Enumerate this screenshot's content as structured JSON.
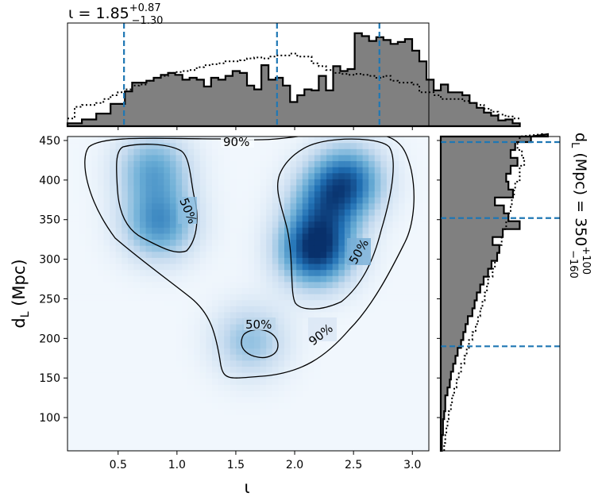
{
  "colors": {
    "hist_fill": "#808080",
    "quantile_line": "#1f77b4",
    "density_cmap": [
      "#f7fbff",
      "#c6dbef",
      "#6baed6",
      "#2171b5",
      "#08306b"
    ]
  },
  "chart_data": {
    "type": "corner_plot",
    "top_title": {
      "symbol": "ι",
      "median": "1.85",
      "upper": "+0.87",
      "lower": "−1.30"
    },
    "right_title": {
      "symbol": "d_L",
      "unit": "(Mpc)",
      "median": "350",
      "upper": "+100",
      "lower": "−160"
    },
    "joint": {
      "type": "heatmap_contour",
      "xlabel": "ι",
      "ylabel": "d_L (Mpc)",
      "xlim": [
        0.07,
        3.14
      ],
      "ylim": [
        58,
        455
      ],
      "xticks": [
        "0.5",
        "1.0",
        "1.5",
        "2.0",
        "2.5",
        "3.0"
      ],
      "yticks": [
        "100",
        "150",
        "200",
        "250",
        "300",
        "350",
        "400",
        "450"
      ],
      "contour_labels": [
        "90%",
        "50%",
        "50%",
        "50%",
        "90%"
      ],
      "density_peaks": [
        {
          "x": 2.18,
          "y": 312,
          "amplitude": 1.0
        },
        {
          "x": 2.45,
          "y": 400,
          "amplitude": 0.72
        },
        {
          "x": 2.25,
          "y": 370,
          "amplitude": 0.45
        },
        {
          "x": 0.85,
          "y": 345,
          "amplitude": 0.6
        },
        {
          "x": 0.8,
          "y": 415,
          "amplitude": 0.5
        },
        {
          "x": 1.62,
          "y": 197,
          "amplitude": 0.38
        }
      ]
    },
    "top_marginal": {
      "type": "histogram",
      "bin_start": 0.07,
      "bin_width": 0.061,
      "solid": [
        0.03,
        0.03,
        0.07,
        0.07,
        0.13,
        0.13,
        0.23,
        0.23,
        0.36,
        0.45,
        0.45,
        0.47,
        0.5,
        0.53,
        0.55,
        0.53,
        0.48,
        0.5,
        0.48,
        0.41,
        0.5,
        0.48,
        0.52,
        0.57,
        0.55,
        0.42,
        0.38,
        0.63,
        0.48,
        0.5,
        0.42,
        0.25,
        0.32,
        0.38,
        0.37,
        0.52,
        0.37,
        0.62,
        0.57,
        0.59,
        0.96,
        0.93,
        0.88,
        0.92,
        0.89,
        0.85,
        0.87,
        0.9,
        0.78,
        0.67,
        0.48,
        0.37,
        0.43,
        0.35,
        0.35,
        0.32,
        0.24,
        0.19,
        0.14,
        0.11,
        0.06,
        0.07,
        0.03
      ],
      "dotted": [
        0.08,
        0.2,
        0.22,
        0.22,
        0.24,
        0.28,
        0.32,
        0.35,
        0.38,
        0.42,
        0.43,
        0.47,
        0.5,
        0.52,
        0.55,
        0.56,
        0.57,
        0.58,
        0.61,
        0.63,
        0.64,
        0.65,
        0.67,
        0.67,
        0.68,
        0.7,
        0.71,
        0.7,
        0.72,
        0.73,
        0.73,
        0.75,
        0.72,
        0.72,
        0.65,
        0.62,
        0.58,
        0.55,
        0.54,
        0.53,
        0.54,
        0.53,
        0.52,
        0.5,
        0.52,
        0.47,
        0.45,
        0.45,
        0.43,
        0.35,
        0.35,
        0.32,
        0.28,
        0.28,
        0.28,
        0.26,
        0.24,
        0.22,
        0.18,
        0.15,
        0.12,
        0.1,
        0.08
      ],
      "quantiles": [
        0.55,
        1.85,
        2.72
      ]
    },
    "right_marginal": {
      "type": "histogram_horizontal",
      "bin_start": 58,
      "bin_width": 10,
      "solid": [
        0.01,
        0.01,
        0.02,
        0.02,
        0.03,
        0.04,
        0.04,
        0.06,
        0.08,
        0.09,
        0.11,
        0.13,
        0.15,
        0.18,
        0.2,
        0.22,
        0.24,
        0.28,
        0.3,
        0.32,
        0.35,
        0.38,
        0.42,
        0.45,
        0.5,
        0.52,
        0.46,
        0.55,
        0.7,
        0.6,
        0.56,
        0.48,
        0.64,
        0.6,
        0.58,
        0.62,
        0.68,
        0.62,
        0.66,
        0.8,
        0.95
      ],
      "dotted": [
        0.03,
        0.04,
        0.05,
        0.06,
        0.07,
        0.09,
        0.1,
        0.12,
        0.14,
        0.16,
        0.18,
        0.21,
        0.23,
        0.25,
        0.28,
        0.31,
        0.33,
        0.35,
        0.37,
        0.39,
        0.41,
        0.42,
        0.46,
        0.48,
        0.5,
        0.52,
        0.54,
        0.55,
        0.58,
        0.6,
        0.62,
        0.63,
        0.65,
        0.66,
        0.7,
        0.7,
        0.74,
        0.72,
        0.68,
        0.7,
        0.9
      ],
      "quantiles": [
        190,
        352,
        448
      ]
    }
  }
}
